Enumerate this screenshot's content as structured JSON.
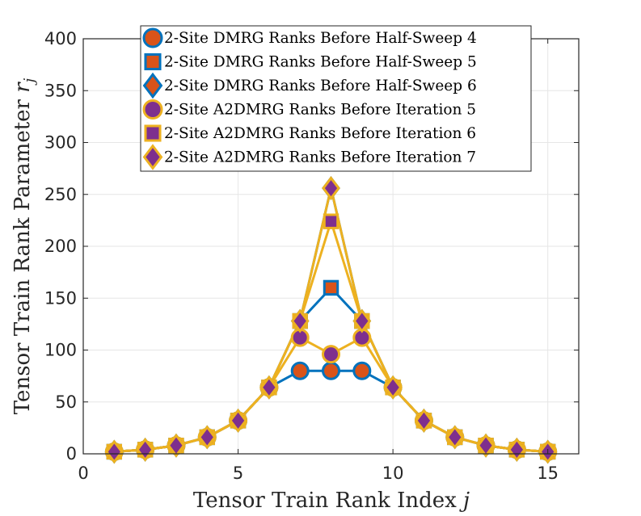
{
  "chart_data": {
    "type": "line",
    "xlabel": "Tensor Train Rank Index",
    "xlabel_var": "j",
    "ylabel": "Tensor Train Rank Parameter",
    "ylabel_var": "r",
    "ylabel_sub": "j",
    "xlim": [
      0,
      16
    ],
    "ylim": [
      0,
      400
    ],
    "xticks": [
      0,
      5,
      10,
      15
    ],
    "yticks": [
      0,
      50,
      100,
      150,
      200,
      250,
      300,
      350,
      400
    ],
    "grid": true,
    "legend_position": "top-center",
    "x": [
      1,
      2,
      3,
      4,
      5,
      6,
      7,
      8,
      9,
      10,
      11,
      12,
      13,
      14,
      15
    ],
    "series": [
      {
        "name": "2-Site DMRG Ranks Before Half-Sweep 4",
        "marker": "circle",
        "line_color": "#0072BD",
        "fill_color": "#D95319",
        "values": [
          2,
          4,
          8,
          16,
          32,
          64,
          80,
          80,
          80,
          64,
          32,
          16,
          8,
          4,
          2
        ]
      },
      {
        "name": "2-Site DMRG Ranks Before Half-Sweep 5",
        "marker": "square",
        "line_color": "#0072BD",
        "fill_color": "#D95319",
        "values": [
          2,
          4,
          8,
          16,
          32,
          64,
          128,
          160,
          128,
          64,
          32,
          16,
          8,
          4,
          2
        ]
      },
      {
        "name": "2-Site DMRG Ranks Before Half-Sweep 6",
        "marker": "diamond",
        "line_color": "#0072BD",
        "fill_color": "#D95319",
        "values": [
          2,
          4,
          8,
          16,
          32,
          64,
          128,
          256,
          128,
          64,
          32,
          16,
          8,
          4,
          2
        ]
      },
      {
        "name": "2-Site A2DMRG Ranks Before Iteration 5",
        "marker": "circle",
        "line_color": "#EDB120",
        "fill_color": "#7E2F8E",
        "values": [
          2,
          4,
          8,
          16,
          32,
          64,
          112,
          96,
          112,
          64,
          32,
          16,
          8,
          4,
          2
        ]
      },
      {
        "name": "2-Site A2DMRG Ranks Before Iteration 6",
        "marker": "square",
        "line_color": "#EDB120",
        "fill_color": "#7E2F8E",
        "values": [
          2,
          4,
          8,
          16,
          32,
          64,
          128,
          224,
          128,
          64,
          32,
          16,
          8,
          4,
          2
        ]
      },
      {
        "name": "2-Site A2DMRG Ranks Before Iteration 7",
        "marker": "diamond",
        "line_color": "#EDB120",
        "fill_color": "#7E2F8E",
        "values": [
          2,
          4,
          8,
          16,
          32,
          64,
          128,
          256,
          128,
          64,
          32,
          16,
          8,
          4,
          2
        ]
      }
    ]
  }
}
